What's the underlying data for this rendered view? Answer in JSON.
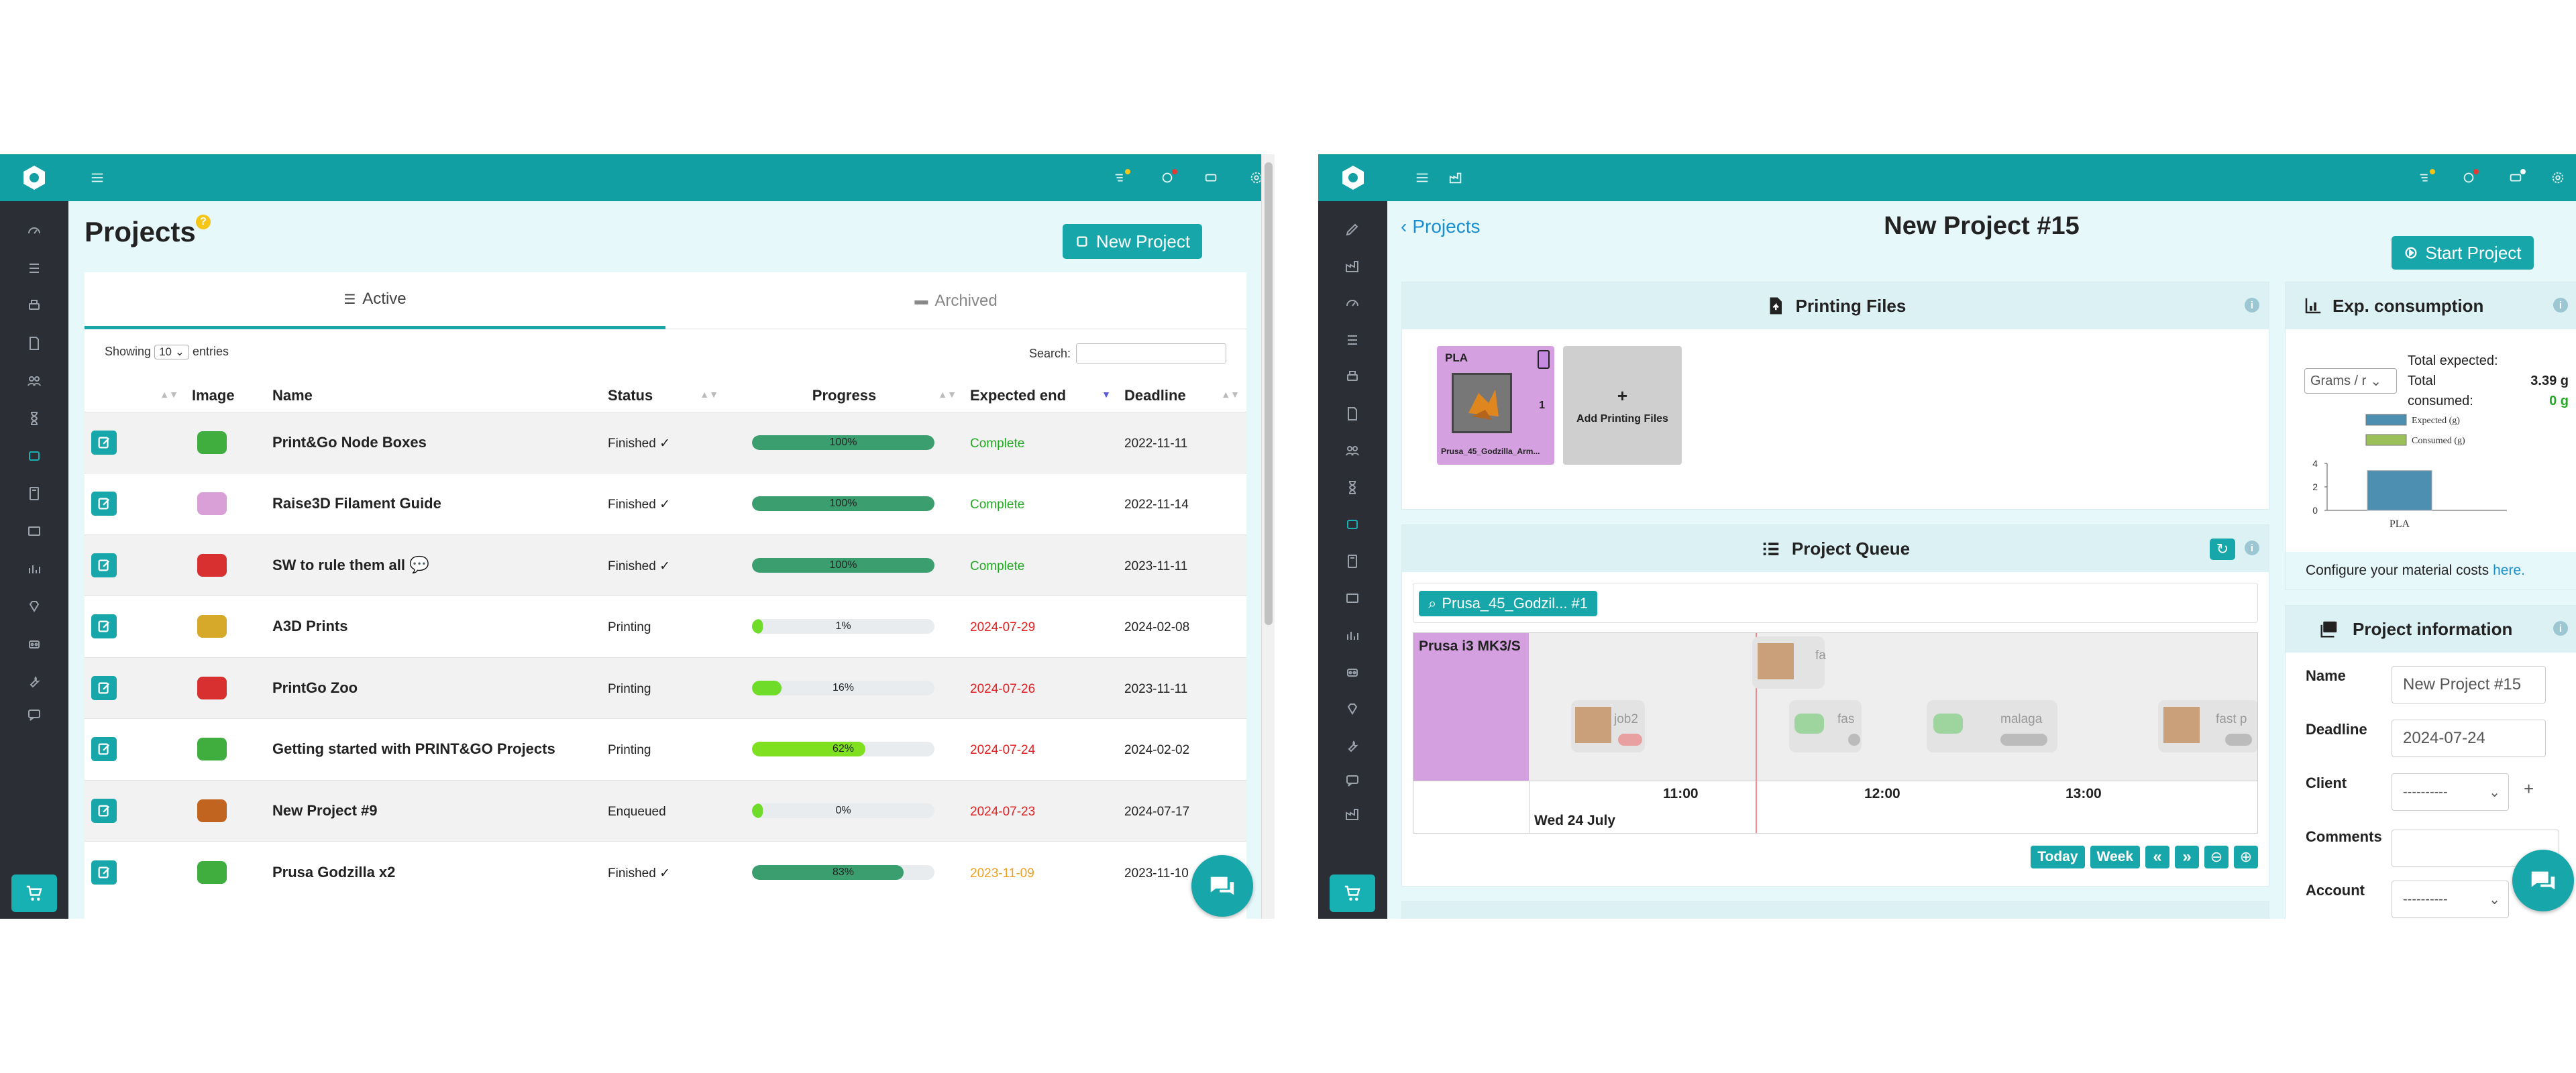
{
  "left": {
    "page_title": "Projects",
    "help_badge": "?",
    "new_project_label": "New Project",
    "tabs": {
      "active": "Active",
      "archived": "Archived"
    },
    "showing_label": "Showing",
    "entries_value": "10",
    "entries_label": "entries",
    "search_label": "Search:",
    "search_value": "",
    "columns": {
      "image": "Image",
      "name": "Name",
      "status": "Status",
      "progress": "Progress",
      "expected_end": "Expected end",
      "deadline": "Deadline"
    },
    "rows": [
      {
        "name": "Print&Go Node Boxes",
        "status": "Finished ✓",
        "progress": 100,
        "progress_label": "100%",
        "expected": "Complete",
        "expected_color": "#22a822",
        "deadline": "2022-11-11",
        "thumb_color": "#3fae3f",
        "bar_color": "#3b9e6f"
      },
      {
        "name": "Raise3D Filament Guide",
        "status": "Finished ✓",
        "progress": 100,
        "progress_label": "100%",
        "expected": "Complete",
        "expected_color": "#22a822",
        "deadline": "2022-11-14",
        "thumb_color": "#d9a0d8",
        "bar_color": "#3b9e6f"
      },
      {
        "name": "SW to rule them all",
        "status": "Finished ✓",
        "progress": 100,
        "progress_label": "100%",
        "expected": "Complete",
        "expected_color": "#22a822",
        "deadline": "2023-11-11",
        "thumb_color": "#d83030",
        "bar_color": "#3b9e6f"
      },
      {
        "name": "A3D Prints",
        "status": "Printing",
        "progress": 1,
        "progress_label": "1%",
        "expected": "2024-07-29",
        "expected_color": "#e02020",
        "deadline": "2024-02-08",
        "thumb_color": "#d7a92a",
        "bar_color": "#6fdc2a"
      },
      {
        "name": "PrintGo Zoo",
        "status": "Printing",
        "progress": 16,
        "progress_label": "16%",
        "expected": "2024-07-26",
        "expected_color": "#e02020",
        "deadline": "2023-11-11",
        "thumb_color": "#d83030",
        "bar_color": "#6fdc2a"
      },
      {
        "name": "Getting started with PRINT&GO Projects",
        "status": "Printing",
        "progress": 62,
        "progress_label": "62%",
        "expected": "2024-07-24",
        "expected_color": "#e02020",
        "deadline": "2024-02-02",
        "thumb_color": "#3fae3f",
        "bar_color": "#7fe020"
      },
      {
        "name": "New Project #9",
        "status": "Enqueued",
        "progress": 0,
        "progress_label": "0%",
        "expected": "2024-07-23",
        "expected_color": "#e02020",
        "deadline": "2024-07-17",
        "thumb_color": "#c0641f",
        "bar_color": "#6fdc2a"
      },
      {
        "name": "Prusa Godzilla x2",
        "status": "Finished ✓",
        "progress": 83,
        "progress_label": "83%",
        "expected": "2023-11-09",
        "expected_color": "#f0a020",
        "deadline": "2023-11-10",
        "thumb_color": "#3fae3f",
        "bar_color": "#3b9e6f"
      }
    ]
  },
  "right": {
    "back_link": "Projects",
    "page_title": "New Project #15",
    "start_project_label": "Start Project",
    "printing_files": {
      "title": "Printing Files",
      "file_material": "PLA",
      "file_count": "1",
      "file_name": "Prusa_45_Godzilla_Arm...",
      "add_label": "Add Printing Files"
    },
    "queue": {
      "title": "Project Queue",
      "filter_chip": "Prusa_45_Godzil... #1",
      "printer": "Prusa i3 MK3/S",
      "jobs": [
        "fa",
        "job2",
        "fas",
        "malaga",
        "fast p"
      ],
      "times": [
        "11:00",
        "12:00",
        "13:00"
      ],
      "date": "Wed 24 July",
      "buttons": {
        "today": "Today",
        "week": "Week",
        "prev": "«",
        "next": "»"
      }
    },
    "consumption": {
      "title": "Exp. consumption",
      "unit_select": "Grams / r",
      "total_expected_label": "Total expected:",
      "total_expected_value": "3.39 g",
      "total_consumed_label": "Total consumed:",
      "total_consumed_value": "0 g",
      "legend_expected": "Expected (g)",
      "legend_consumed": "Consumed (g)",
      "y_ticks": [
        "4",
        "2",
        "0"
      ],
      "x_label": "PLA",
      "expected_value": 3.39,
      "y_max": 4,
      "configure_text": "Configure your material costs",
      "configure_link": "here.",
      "colors": {
        "expected": "#4d8fb0",
        "consumed": "#9bc05a"
      }
    },
    "project_info": {
      "title": "Project information",
      "name_label": "Name",
      "name_value": "New Project #15",
      "deadline_label": "Deadline",
      "deadline_value": "2024-07-24",
      "client_label": "Client",
      "client_value": "----------",
      "comments_label": "Comments",
      "account_label": "Account",
      "account_value": "----------"
    }
  },
  "colors": {
    "teal": "#119fa3",
    "sidebar": "#2b2f35",
    "accent": "#17a6aa"
  }
}
